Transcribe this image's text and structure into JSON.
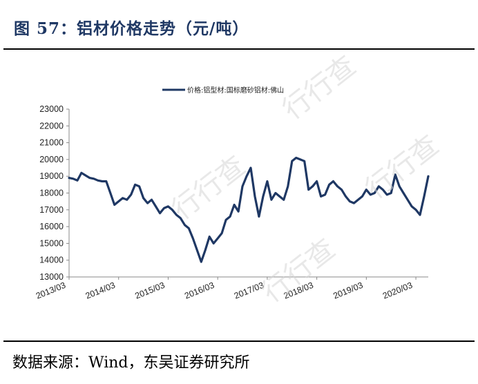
{
  "figure": {
    "title": "图 57：铝材价格走势（元/吨）",
    "source": "数据来源：Wind，东吴证券研究所"
  },
  "watermark": "行行查",
  "colors": {
    "series": "#1f3864",
    "title": "#1f3864",
    "axis": "#888888"
  },
  "chart_data": {
    "type": "line",
    "title": "",
    "xlabel": "",
    "ylabel": "",
    "ylim": [
      13000,
      23000
    ],
    "yticks": [
      13000,
      14000,
      15000,
      16000,
      17000,
      18000,
      19000,
      20000,
      21000,
      22000,
      23000
    ],
    "xlim": [
      "2013-03",
      "2020-06"
    ],
    "xticks": [
      "2013/03",
      "2014/03",
      "2015/03",
      "2016/03",
      "2017/03",
      "2018/03",
      "2019/03",
      "2020/03"
    ],
    "legend_position": "top-center",
    "grid": false,
    "series": [
      {
        "name": "价格:铝型材:国标磨砂铝材:佛山",
        "x": [
          "2013-03",
          "2013-04",
          "2013-05",
          "2013-06",
          "2013-07",
          "2013-08",
          "2013-09",
          "2013-10",
          "2013-11",
          "2013-12",
          "2014-01",
          "2014-02",
          "2014-03",
          "2014-04",
          "2014-05",
          "2014-06",
          "2014-07",
          "2014-08",
          "2014-09",
          "2014-10",
          "2014-11",
          "2014-12",
          "2015-01",
          "2015-02",
          "2015-03",
          "2015-04",
          "2015-05",
          "2015-06",
          "2015-07",
          "2015-08",
          "2015-09",
          "2015-10",
          "2015-11",
          "2015-12",
          "2016-01",
          "2016-02",
          "2016-03",
          "2016-04",
          "2016-05",
          "2016-06",
          "2016-07",
          "2016-08",
          "2016-09",
          "2016-10",
          "2016-11",
          "2016-12",
          "2017-01",
          "2017-02",
          "2017-03",
          "2017-04",
          "2017-05",
          "2017-06",
          "2017-07",
          "2017-08",
          "2017-09",
          "2017-10",
          "2017-11",
          "2017-12",
          "2018-01",
          "2018-02",
          "2018-03",
          "2018-04",
          "2018-05",
          "2018-06",
          "2018-07",
          "2018-08",
          "2018-09",
          "2018-10",
          "2018-11",
          "2018-12",
          "2019-01",
          "2019-02",
          "2019-03",
          "2019-04",
          "2019-05",
          "2019-06",
          "2019-07",
          "2019-08",
          "2019-09",
          "2019-10",
          "2019-11",
          "2019-12",
          "2020-01",
          "2020-02",
          "2020-03",
          "2020-04",
          "2020-05",
          "2020-06"
        ],
        "values": [
          18900,
          18850,
          18750,
          19200,
          19050,
          18900,
          18850,
          18750,
          18700,
          18700,
          18000,
          17300,
          17500,
          17700,
          17600,
          17900,
          18500,
          18400,
          17700,
          17400,
          17600,
          17200,
          16800,
          17100,
          17200,
          17000,
          16700,
          16500,
          16100,
          15900,
          15300,
          14600,
          13900,
          14600,
          15400,
          15000,
          15300,
          15600,
          16400,
          16600,
          17300,
          16900,
          18400,
          19000,
          19500,
          17800,
          16600,
          17800,
          18700,
          17600,
          18000,
          17800,
          17600,
          18400,
          19900,
          20100,
          20000,
          19900,
          18200,
          18400,
          18700,
          17800,
          17900,
          18500,
          18700,
          18400,
          18200,
          17800,
          17500,
          17400,
          17600,
          17800,
          18200,
          17900,
          18000,
          18400,
          18200,
          17900,
          18000,
          19100,
          18400,
          18000,
          17600,
          17200,
          17000,
          16700,
          17800,
          19000
        ]
      }
    ]
  }
}
